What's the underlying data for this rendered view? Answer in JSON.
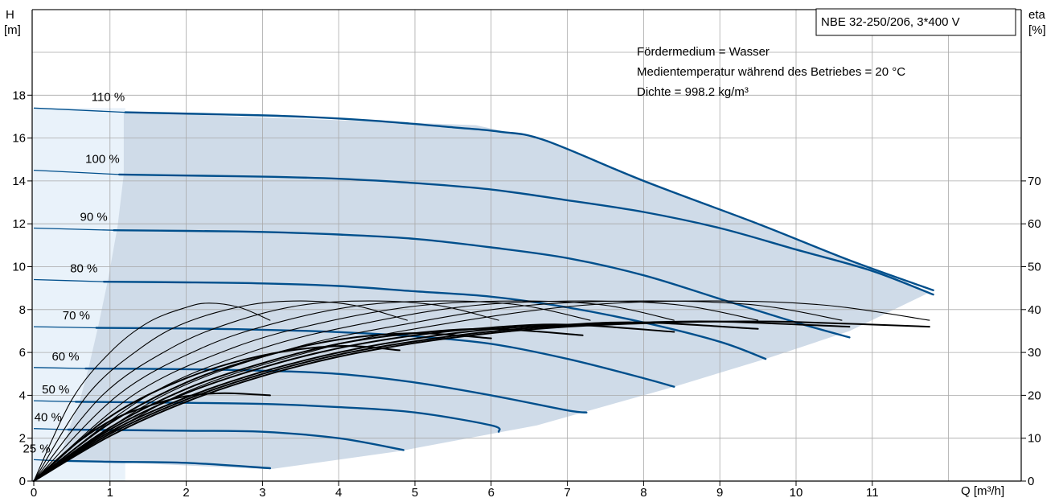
{
  "chart_data": {
    "type": "line",
    "title": "NBE 32-250/206, 3*400 V",
    "notes": [
      "Fördermedium = Wasser",
      "Medientemperatur während des Betriebes = 20 °C",
      "Dichte = 998.2 kg/m³"
    ],
    "y_left": {
      "label_line1": "H",
      "label_line2": "[m]",
      "range": [
        0,
        22
      ],
      "ticks": [
        "0",
        "2",
        "4",
        "6",
        "8",
        "10",
        "12",
        "14",
        "16",
        "18"
      ],
      "tick_values": [
        0,
        2,
        4,
        6,
        8,
        10,
        12,
        14,
        16,
        18
      ]
    },
    "y_right": {
      "label_line1": "eta",
      "label_line2": "[%]",
      "range": [
        0,
        110
      ],
      "ticks": [
        "0",
        "10",
        "20",
        "30",
        "40",
        "50",
        "60",
        "70"
      ],
      "tick_values": [
        0,
        10,
        20,
        30,
        40,
        50,
        60,
        70
      ]
    },
    "x": {
      "label": "Q [m³/h]",
      "range": [
        0,
        12
      ],
      "ticks": [
        "0",
        "1",
        "2",
        "3",
        "4",
        "5",
        "6",
        "7",
        "8",
        "9",
        "10",
        "11"
      ],
      "tick_values": [
        0,
        1,
        2,
        3,
        4,
        5,
        6,
        7,
        8,
        9,
        10,
        11
      ]
    },
    "grid": true,
    "colors": {
      "head": "#004f8c",
      "eta": "#000000",
      "region": "#cfdbe8",
      "region_low": "#e9f2fa",
      "grid": "#a9a9a9"
    },
    "operating_region": [
      [
        1.18,
        17.2
      ],
      [
        1.18,
        14.3
      ],
      [
        1.1,
        11.9
      ],
      [
        0.98,
        9.5
      ],
      [
        0.85,
        7.3
      ],
      [
        0.72,
        5.3
      ],
      [
        0.6,
        3.7
      ],
      [
        0.46,
        2.4
      ],
      [
        0.34,
        1.0
      ],
      [
        3.1,
        0.55
      ],
      [
        4.8,
        1.4
      ],
      [
        6.6,
        2.6
      ],
      [
        8.4,
        4.4
      ],
      [
        9.6,
        5.7
      ],
      [
        10.7,
        7.0
      ],
      [
        11.75,
        8.8
      ],
      [
        6.7,
        15.9
      ],
      [
        5.8,
        16.6
      ],
      [
        1.18,
        17.2
      ]
    ],
    "head_curves": [
      {
        "name": "110 %",
        "label": "110 %",
        "points": [
          [
            0,
            17.4
          ],
          [
            1.2,
            17.2
          ],
          [
            2.5,
            17.1
          ],
          [
            3.5,
            17.0
          ],
          [
            4.5,
            16.8
          ],
          [
            5.5,
            16.5
          ],
          [
            6.1,
            16.3
          ],
          [
            6.7,
            15.9
          ],
          [
            8,
            14.0
          ],
          [
            9.5,
            12.0
          ],
          [
            10.7,
            10.3
          ],
          [
            11.8,
            8.9
          ]
        ]
      },
      {
        "name": "100 %",
        "label": "100 %",
        "points": [
          [
            0,
            14.5
          ],
          [
            1.12,
            14.3
          ],
          [
            2,
            14.25
          ],
          [
            3,
            14.2
          ],
          [
            4,
            14.1
          ],
          [
            5,
            13.9
          ],
          [
            6,
            13.6
          ],
          [
            7,
            13.1
          ],
          [
            8,
            12.55
          ],
          [
            9,
            11.8
          ],
          [
            10,
            10.8
          ],
          [
            11,
            9.8
          ],
          [
            11.8,
            8.7
          ]
        ]
      },
      {
        "name": "90 %",
        "label": "90 %",
        "points": [
          [
            0,
            11.8
          ],
          [
            1.05,
            11.7
          ],
          [
            2,
            11.67
          ],
          [
            3,
            11.62
          ],
          [
            4,
            11.5
          ],
          [
            5,
            11.3
          ],
          [
            6,
            10.9
          ],
          [
            7,
            10.4
          ],
          [
            8,
            9.6
          ],
          [
            9,
            8.5
          ],
          [
            10,
            7.4
          ],
          [
            10.7,
            6.7
          ]
        ]
      },
      {
        "name": "80 %",
        "label": "80 %",
        "points": [
          [
            0,
            9.4
          ],
          [
            0.92,
            9.3
          ],
          [
            2,
            9.27
          ],
          [
            3,
            9.22
          ],
          [
            4,
            9.1
          ],
          [
            5,
            8.85
          ],
          [
            6,
            8.6
          ],
          [
            7,
            8.1
          ],
          [
            8,
            7.4
          ],
          [
            9,
            6.5
          ],
          [
            9.6,
            5.7
          ]
        ]
      },
      {
        "name": "70 %",
        "label": "70 %",
        "points": [
          [
            0,
            7.2
          ],
          [
            0.82,
            7.15
          ],
          [
            2,
            7.12
          ],
          [
            3,
            7.06
          ],
          [
            4,
            6.95
          ],
          [
            5,
            6.75
          ],
          [
            6,
            6.4
          ],
          [
            7,
            5.7
          ],
          [
            8,
            4.8
          ],
          [
            8.4,
            4.4
          ]
        ]
      },
      {
        "name": "60 %",
        "label": "60 %",
        "points": [
          [
            0,
            5.3
          ],
          [
            0.68,
            5.25
          ],
          [
            2,
            5.22
          ],
          [
            3,
            5.15
          ],
          [
            4,
            5.0
          ],
          [
            5,
            4.6
          ],
          [
            6,
            4.0
          ],
          [
            7,
            3.3
          ],
          [
            7.25,
            3.2
          ]
        ]
      },
      {
        "name": "50 %",
        "label": "50 %",
        "points": [
          [
            0,
            3.75
          ],
          [
            0.55,
            3.7
          ],
          [
            2,
            3.65
          ],
          [
            3,
            3.6
          ],
          [
            4,
            3.45
          ],
          [
            5,
            3.2
          ],
          [
            6,
            2.6
          ],
          [
            6.1,
            2.3
          ]
        ]
      },
      {
        "name": "40 %",
        "label": "40 %",
        "points": [
          [
            0,
            2.45
          ],
          [
            0.45,
            2.4
          ],
          [
            2,
            2.35
          ],
          [
            3,
            2.3
          ],
          [
            4,
            2.0
          ],
          [
            4.85,
            1.45
          ]
        ]
      },
      {
        "name": "25 %",
        "label": "25 %",
        "points": [
          [
            0,
            1.0
          ],
          [
            0.3,
            0.95
          ],
          [
            1,
            0.9
          ],
          [
            2,
            0.85
          ],
          [
            3.1,
            0.6
          ]
        ]
      }
    ],
    "eta_curves": [
      {
        "name": "eta 1",
        "points": [
          [
            0,
            0
          ],
          [
            0.5,
            19
          ],
          [
            1,
            30
          ],
          [
            1.5,
            37
          ],
          [
            2,
            40.5
          ],
          [
            2.3,
            41.5
          ],
          [
            2.7,
            40.5
          ],
          [
            3.1,
            37.5
          ]
        ]
      },
      {
        "name": "eta 2",
        "points": [
          [
            0,
            0
          ],
          [
            0.7,
            20
          ],
          [
            1.4,
            31
          ],
          [
            2,
            37
          ],
          [
            2.8,
            41
          ],
          [
            3.5,
            42
          ],
          [
            4.2,
            41
          ],
          [
            4.9,
            37.5
          ]
        ]
      },
      {
        "name": "eta 3",
        "points": [
          [
            0,
            0
          ],
          [
            0.9,
            20
          ],
          [
            1.8,
            31
          ],
          [
            2.6,
            37
          ],
          [
            3.5,
            41
          ],
          [
            4.4,
            42
          ],
          [
            5.3,
            41
          ],
          [
            6.1,
            37.5
          ]
        ]
      },
      {
        "name": "eta 4",
        "points": [
          [
            0,
            0
          ],
          [
            1.1,
            20
          ],
          [
            2.2,
            31
          ],
          [
            3.2,
            37
          ],
          [
            4.3,
            41
          ],
          [
            5.4,
            42
          ],
          [
            6.4,
            41
          ],
          [
            7.3,
            37.5
          ]
        ]
      },
      {
        "name": "eta 5",
        "points": [
          [
            0,
            0
          ],
          [
            1.3,
            20
          ],
          [
            2.6,
            31
          ],
          [
            3.8,
            37
          ],
          [
            5.1,
            41
          ],
          [
            6.4,
            42
          ],
          [
            7.5,
            41
          ],
          [
            8.4,
            37.5
          ]
        ]
      },
      {
        "name": "eta 6",
        "points": [
          [
            0,
            0
          ],
          [
            1.5,
            20
          ],
          [
            3,
            31
          ],
          [
            4.4,
            37
          ],
          [
            5.8,
            41
          ],
          [
            7.3,
            42
          ],
          [
            8.5,
            41
          ],
          [
            9.5,
            37.5
          ]
        ]
      },
      {
        "name": "eta 7",
        "points": [
          [
            0,
            0
          ],
          [
            1.7,
            20
          ],
          [
            3.4,
            31
          ],
          [
            5,
            37
          ],
          [
            6.5,
            41
          ],
          [
            8.1,
            42
          ],
          [
            9.5,
            41
          ],
          [
            10.6,
            37.5
          ]
        ]
      },
      {
        "name": "eta 8",
        "points": [
          [
            0,
            0
          ],
          [
            1.9,
            20
          ],
          [
            3.8,
            31
          ],
          [
            5.5,
            37
          ],
          [
            7.2,
            41
          ],
          [
            8.9,
            42
          ],
          [
            10.4,
            41
          ],
          [
            11.75,
            37.5
          ]
        ]
      },
      {
        "name": "eta 9",
        "points": [
          [
            0,
            0
          ],
          [
            0.5,
            8
          ],
          [
            1,
            14
          ],
          [
            1.5,
            17.5
          ],
          [
            2,
            19.8
          ],
          [
            2.5,
            20.5
          ],
          [
            3.1,
            20
          ]
        ]
      },
      {
        "name": "eta 10",
        "points": [
          [
            0,
            0
          ],
          [
            1,
            15
          ],
          [
            2,
            24
          ],
          [
            3,
            29.3
          ],
          [
            4,
            31.5
          ],
          [
            4.8,
            30.5
          ]
        ]
      },
      {
        "name": "eta 11",
        "points": [
          [
            0,
            0
          ],
          [
            1,
            13.5
          ],
          [
            2,
            23
          ],
          [
            3,
            29
          ],
          [
            4,
            33
          ],
          [
            5,
            34.5
          ],
          [
            6,
            33.3
          ]
        ]
      },
      {
        "name": "eta 12",
        "points": [
          [
            0,
            0
          ],
          [
            1,
            12.5
          ],
          [
            2,
            21.5
          ],
          [
            3,
            27.5
          ],
          [
            4,
            32
          ],
          [
            5,
            34.5
          ],
          [
            6,
            35.5
          ],
          [
            7.2,
            34
          ]
        ]
      },
      {
        "name": "eta 13",
        "points": [
          [
            0,
            0
          ],
          [
            1,
            12
          ],
          [
            2,
            20.5
          ],
          [
            3,
            26.5
          ],
          [
            4,
            31
          ],
          [
            5,
            34
          ],
          [
            6,
            35.8
          ],
          [
            7,
            36.5
          ],
          [
            8.4,
            34.8
          ]
        ]
      },
      {
        "name": "eta 14",
        "points": [
          [
            0,
            0
          ],
          [
            1,
            11.5
          ],
          [
            2,
            19.5
          ],
          [
            3,
            25.5
          ],
          [
            4,
            30
          ],
          [
            5,
            33.2
          ],
          [
            6,
            35.4
          ],
          [
            7,
            36.5
          ],
          [
            8,
            37
          ],
          [
            9.5,
            35.5
          ]
        ]
      },
      {
        "name": "eta 15",
        "points": [
          [
            0,
            0
          ],
          [
            1,
            11
          ],
          [
            2,
            19
          ],
          [
            3,
            25
          ],
          [
            4,
            29.5
          ],
          [
            5,
            32.6
          ],
          [
            6,
            34.9
          ],
          [
            7,
            36.3
          ],
          [
            8,
            37
          ],
          [
            9,
            37.2
          ],
          [
            10.7,
            36
          ]
        ]
      },
      {
        "name": "eta 16",
        "points": [
          [
            0,
            0
          ],
          [
            1,
            10.5
          ],
          [
            2,
            18.5
          ],
          [
            3,
            24.5
          ],
          [
            4,
            29
          ],
          [
            5,
            32.2
          ],
          [
            6,
            34.5
          ],
          [
            7,
            36
          ],
          [
            8,
            36.8
          ],
          [
            9,
            37.2
          ],
          [
            10,
            37.1
          ],
          [
            11.75,
            36
          ]
        ]
      }
    ]
  }
}
